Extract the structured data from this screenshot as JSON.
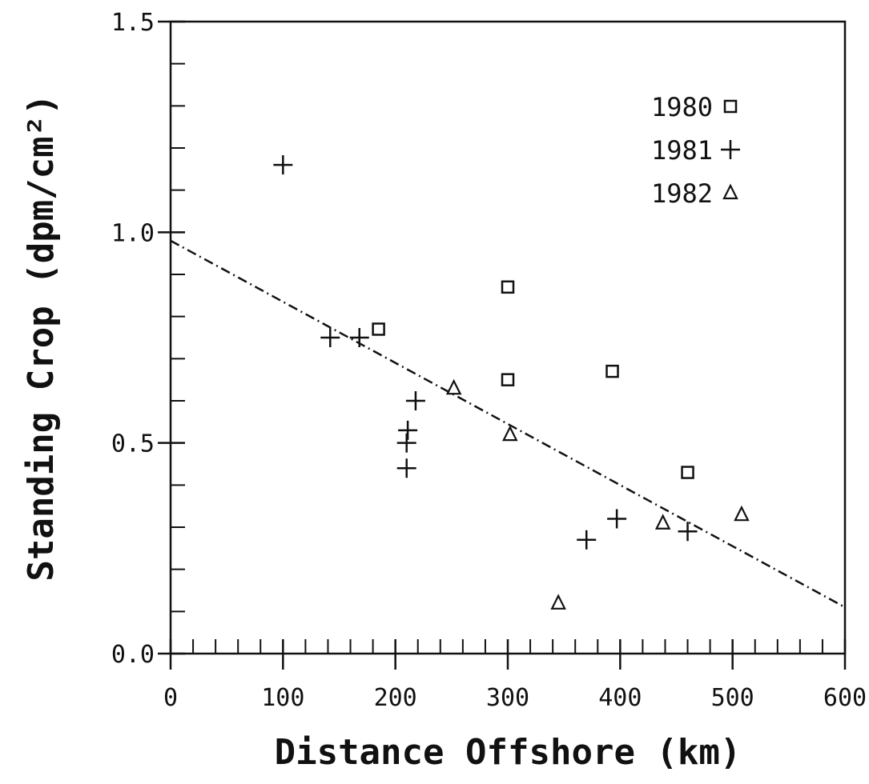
{
  "chart_data": {
    "type": "scatter",
    "title": "",
    "xlabel": "Distance Offshore (km)",
    "ylabel": "Standing Crop (dpm/cm²)",
    "xlim": [
      0,
      600
    ],
    "ylim": [
      0.0,
      1.5
    ],
    "x_ticks": [
      0,
      100,
      200,
      300,
      400,
      500,
      600
    ],
    "x_tick_labels": [
      "0",
      "100",
      "200",
      "300",
      "400",
      "500",
      "600"
    ],
    "y_ticks": [
      0.0,
      0.5,
      1.0,
      1.5
    ],
    "y_tick_labels": [
      "0.0",
      "0.5",
      "1.0",
      "1.5"
    ],
    "x_minor_step": 20,
    "y_minor_step": 0.1,
    "grid": false,
    "legend_position": "top-right",
    "series": [
      {
        "name": "1980",
        "marker": "square",
        "points": [
          {
            "x": 185,
            "y": 0.77
          },
          {
            "x": 300,
            "y": 0.87
          },
          {
            "x": 300,
            "y": 0.65
          },
          {
            "x": 393,
            "y": 0.67
          },
          {
            "x": 460,
            "y": 0.43
          }
        ]
      },
      {
        "name": "1981",
        "marker": "plus",
        "points": [
          {
            "x": 100,
            "y": 1.16
          },
          {
            "x": 142,
            "y": 0.75
          },
          {
            "x": 168,
            "y": 0.75
          },
          {
            "x": 218,
            "y": 0.6
          },
          {
            "x": 211,
            "y": 0.53
          },
          {
            "x": 210,
            "y": 0.5
          },
          {
            "x": 210,
            "y": 0.44
          },
          {
            "x": 370,
            "y": 0.27
          },
          {
            "x": 397,
            "y": 0.32
          },
          {
            "x": 460,
            "y": 0.29
          }
        ]
      },
      {
        "name": "1982",
        "marker": "triangle",
        "points": [
          {
            "x": 252,
            "y": 0.63
          },
          {
            "x": 302,
            "y": 0.52
          },
          {
            "x": 345,
            "y": 0.12
          },
          {
            "x": 438,
            "y": 0.31
          },
          {
            "x": 508,
            "y": 0.33
          }
        ]
      }
    ],
    "trend_line": {
      "style": "dash-dot",
      "points": [
        {
          "x": 0,
          "y": 0.98
        },
        {
          "x": 600,
          "y": 0.11
        }
      ]
    }
  }
}
